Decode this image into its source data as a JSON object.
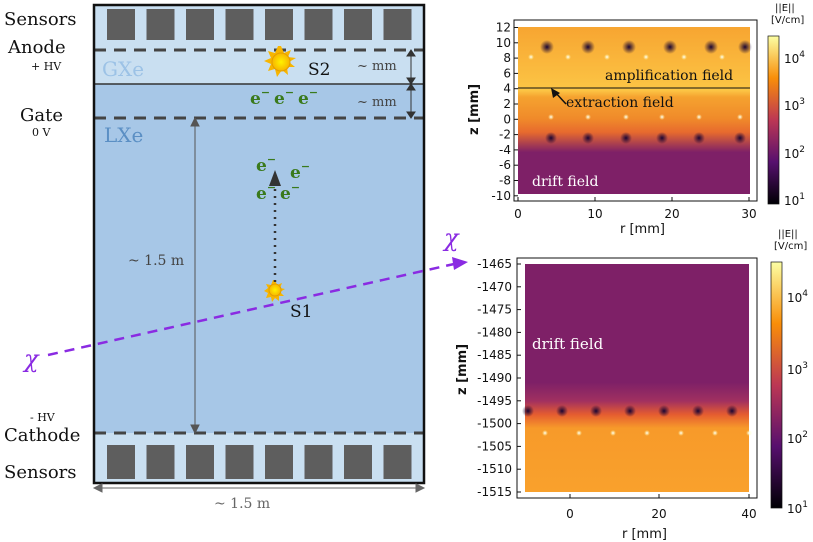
{
  "tpc": {
    "labels": {
      "sensors_top": "Sensors",
      "anode": "Anode",
      "anode_voltage": "+ HV",
      "gate": "Gate",
      "gate_voltage": "0 V",
      "cathode_voltage": "- HV",
      "cathode": "Cathode",
      "sensors_bottom": "Sensors",
      "gxe": "GXe",
      "lxe": "LXe",
      "s2": "S2",
      "s1": "S1",
      "electron": "e",
      "electron_charge": "−",
      "chi": "χ",
      "chi_right": "χ",
      "mm_gap_1": "~ mm",
      "mm_gap_2": "~ mm",
      "height": "~ 1.5 m",
      "width": "~ 1.5 m"
    },
    "colors": {
      "lxe": "#a7c7e7",
      "gxe": "#c9dff1",
      "gas_label": "#9cc2e6",
      "liquid_label": "#5b8fc4",
      "sensor": "#5e5e5e",
      "electron": "#3a7a1c",
      "chi": "#8a2be2"
    }
  },
  "top_plot": {
    "colorbar_title": "||E||",
    "colorbar_unit": "[V/cm]",
    "colorbar_ticks": [
      {
        "base": "10",
        "exp": "4"
      },
      {
        "base": "10",
        "exp": "3"
      },
      {
        "base": "10",
        "exp": "2"
      },
      {
        "base": "10",
        "exp": "1"
      }
    ],
    "y_ticks": [
      "12",
      "10",
      "8",
      "6",
      "4",
      "2",
      "0",
      "-2",
      "-4",
      "-6",
      "-8",
      "-10"
    ],
    "x_ticks": [
      "0",
      "10",
      "20",
      "30"
    ],
    "xlabel": "r [mm]",
    "ylabel": "z [mm]",
    "annotations": {
      "amplification": "amplification field",
      "extraction": "extraction field",
      "drift": "drift field"
    }
  },
  "bottom_plot": {
    "colorbar_title": "||E||",
    "colorbar_unit": "[V/cm]",
    "colorbar_ticks": [
      {
        "base": "10",
        "exp": "4"
      },
      {
        "base": "10",
        "exp": "3"
      },
      {
        "base": "10",
        "exp": "2"
      },
      {
        "base": "10",
        "exp": "1"
      }
    ],
    "y_ticks": [
      "-1465",
      "-1470",
      "-1475",
      "-1480",
      "-1485",
      "-1490",
      "-1495",
      "-1500",
      "-1505",
      "-1510",
      "-1515"
    ],
    "x_ticks": [
      "0",
      "20",
      "40"
    ],
    "xlabel": "r [mm]",
    "ylabel": "z [mm]",
    "annotations": {
      "drift": "drift field"
    }
  }
}
